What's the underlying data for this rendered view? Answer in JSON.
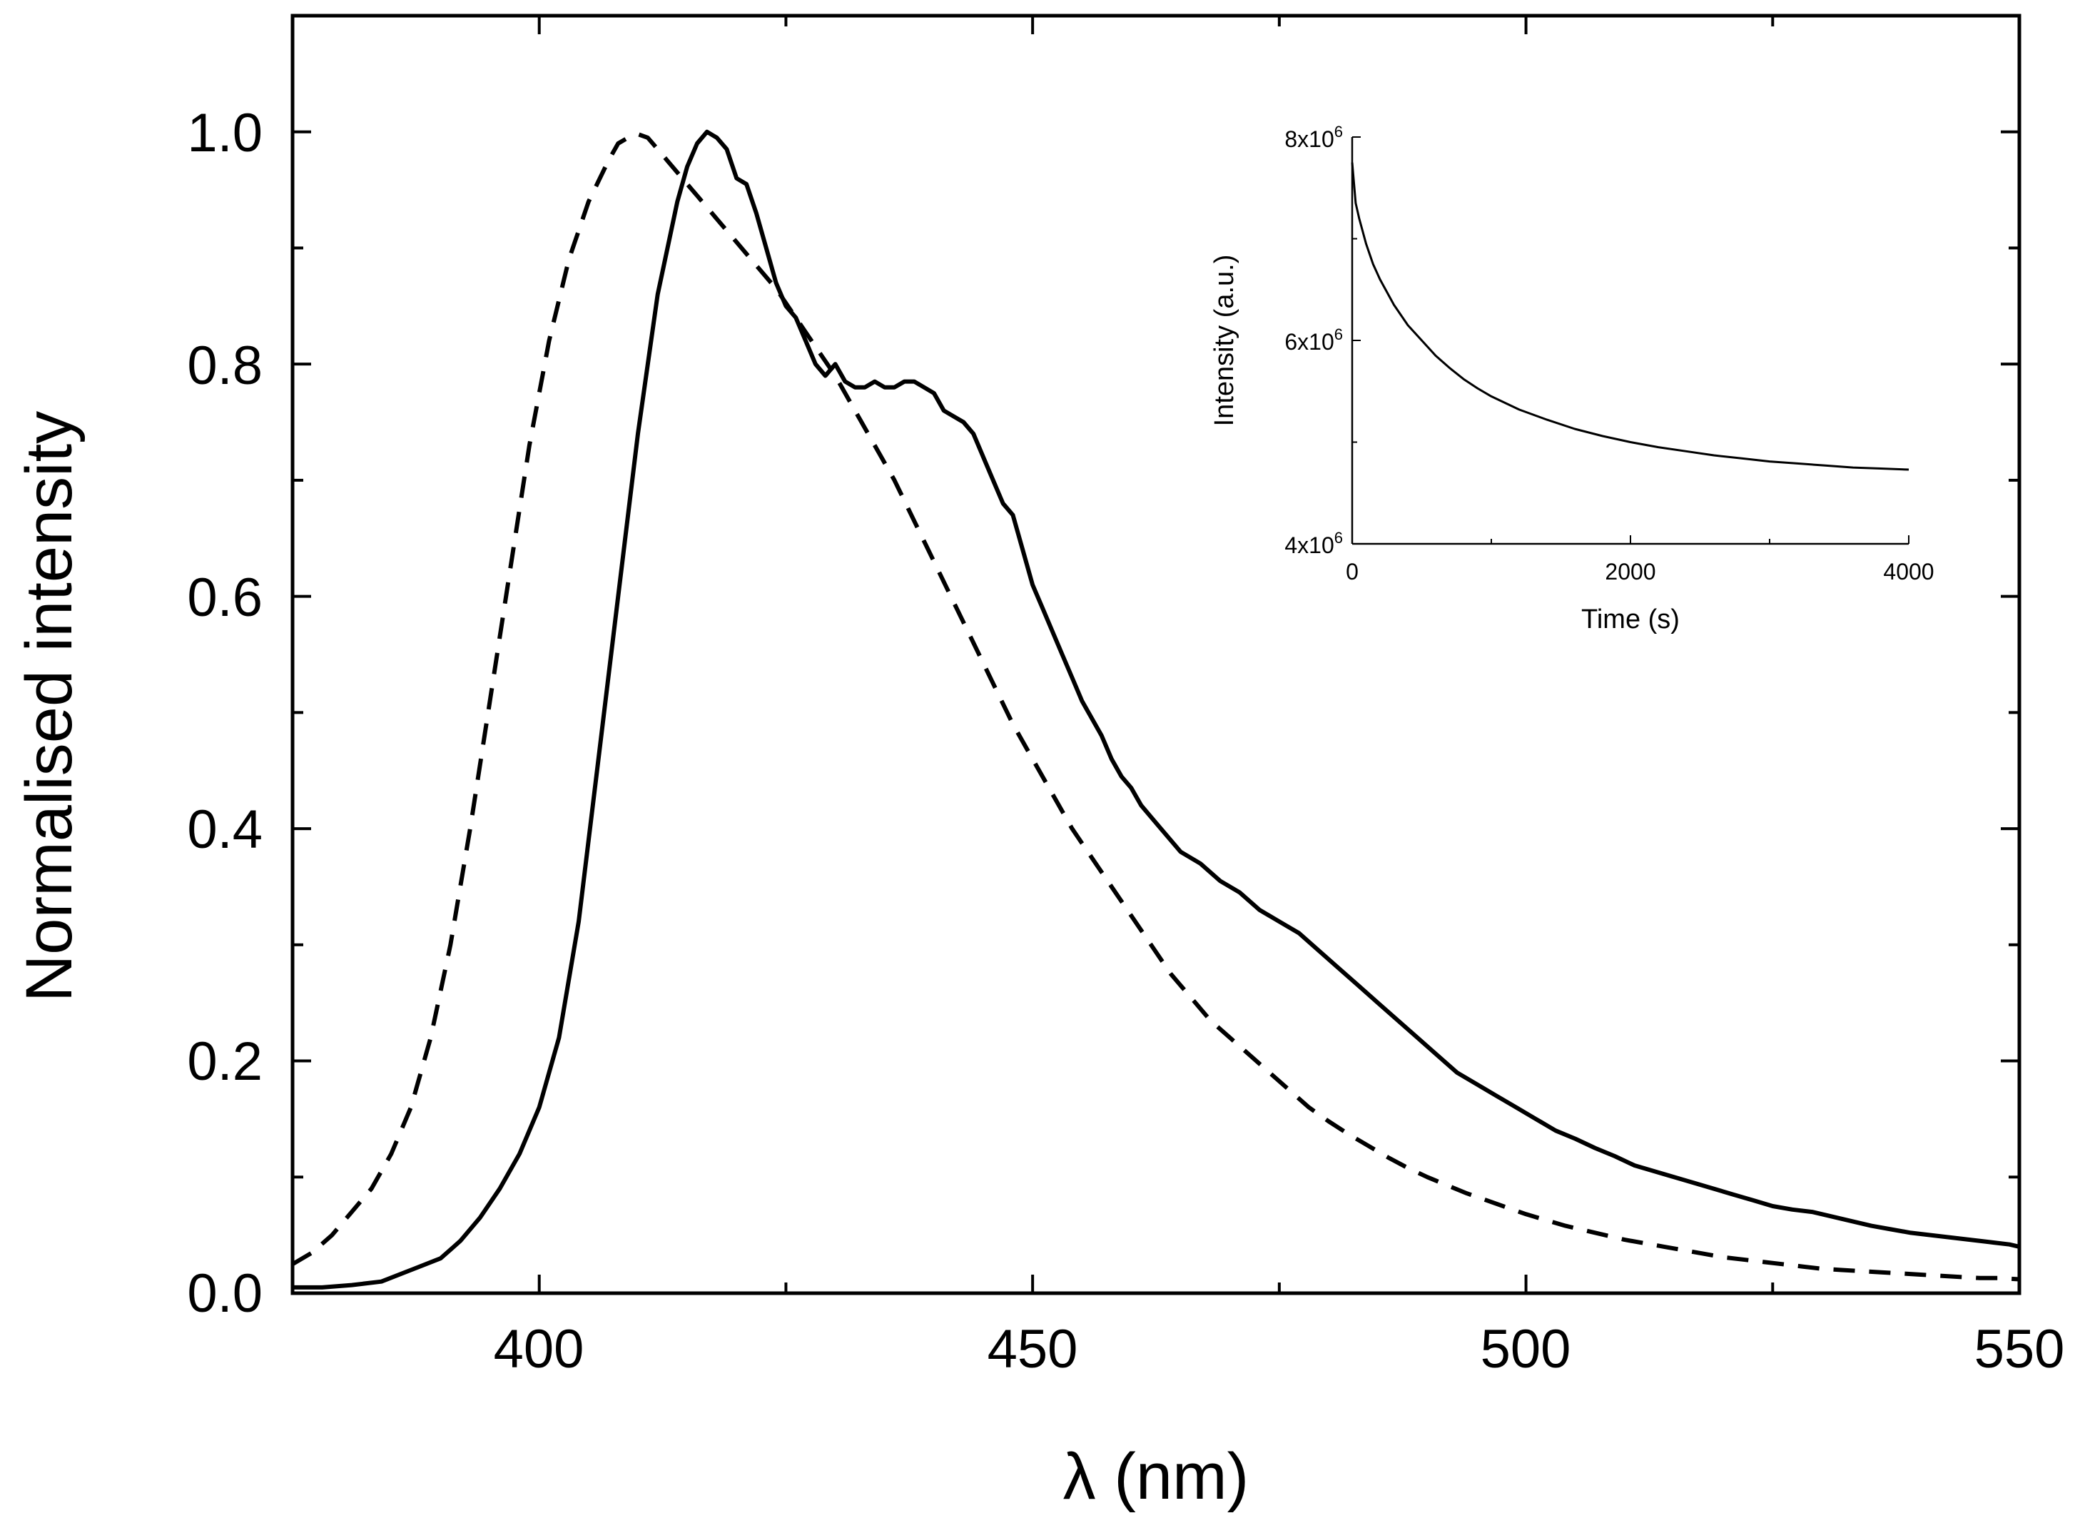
{
  "chart_data": [
    {
      "type": "line",
      "xlabel": "λ (nm)",
      "ylabel": "Normalised intensity",
      "xlim": [
        375,
        550
      ],
      "ylim": [
        0,
        1.1
      ],
      "xticks": [
        400,
        450,
        500,
        550
      ],
      "xtick_labels": [
        "400",
        "450",
        "500",
        "550"
      ],
      "yticks": [
        0.0,
        0.2,
        0.4,
        0.6,
        0.8,
        1.0
      ],
      "ytick_labels": [
        "0.0",
        "0.2",
        "0.4",
        "0.6",
        "0.8",
        "1.0"
      ],
      "series": [
        {
          "name": "solid",
          "style": "solid",
          "x": [
            375,
            378,
            381,
            384,
            387,
            390,
            392,
            394,
            396,
            398,
            400,
            402,
            404,
            406,
            408,
            410,
            412,
            414,
            415,
            416,
            417,
            418,
            419,
            420,
            421,
            422,
            423,
            424,
            425,
            426,
            427,
            428,
            429,
            430,
            431,
            432,
            433,
            434,
            435,
            436,
            437,
            438,
            439,
            440,
            441,
            442,
            443,
            444,
            445,
            446,
            447,
            448,
            449,
            450,
            451,
            452,
            453,
            454,
            455,
            456,
            457,
            458,
            459,
            460,
            461,
            462,
            463,
            465,
            467,
            469,
            471,
            473,
            475,
            477,
            479,
            481,
            483,
            485,
            487,
            489,
            491,
            493,
            495,
            497,
            499,
            501,
            503,
            505,
            507,
            509,
            511,
            513,
            515,
            517,
            519,
            521,
            523,
            525,
            527,
            529,
            531,
            533,
            535,
            537,
            539,
            541,
            543,
            545,
            547,
            549,
            550
          ],
          "y": [
            0.005,
            0.005,
            0.007,
            0.01,
            0.02,
            0.03,
            0.045,
            0.065,
            0.09,
            0.12,
            0.16,
            0.22,
            0.32,
            0.46,
            0.6,
            0.74,
            0.86,
            0.94,
            0.97,
            0.99,
            1.0,
            0.995,
            0.985,
            0.96,
            0.955,
            0.93,
            0.9,
            0.87,
            0.85,
            0.84,
            0.82,
            0.8,
            0.79,
            0.8,
            0.785,
            0.78,
            0.78,
            0.785,
            0.78,
            0.78,
            0.785,
            0.785,
            0.78,
            0.775,
            0.76,
            0.755,
            0.75,
            0.74,
            0.72,
            0.7,
            0.68,
            0.67,
            0.64,
            0.61,
            0.59,
            0.57,
            0.55,
            0.53,
            0.51,
            0.495,
            0.48,
            0.46,
            0.445,
            0.435,
            0.42,
            0.41,
            0.4,
            0.38,
            0.37,
            0.355,
            0.345,
            0.33,
            0.32,
            0.31,
            0.295,
            0.28,
            0.265,
            0.25,
            0.235,
            0.22,
            0.205,
            0.19,
            0.18,
            0.17,
            0.16,
            0.15,
            0.14,
            0.133,
            0.125,
            0.118,
            0.11,
            0.105,
            0.1,
            0.095,
            0.09,
            0.085,
            0.08,
            0.075,
            0.072,
            0.07,
            0.066,
            0.062,
            0.058,
            0.055,
            0.052,
            0.05,
            0.048,
            0.046,
            0.044,
            0.042,
            0.04
          ]
        },
        {
          "name": "dashed",
          "style": "dashed",
          "x": [
            375,
            377,
            379,
            381,
            383,
            385,
            387,
            389,
            391,
            393,
            395,
            397,
            399,
            401,
            403,
            405,
            407,
            408,
            409,
            410,
            411,
            412,
            413,
            414,
            415,
            416,
            417,
            418,
            420,
            422,
            424,
            426,
            428,
            430,
            432,
            434,
            436,
            438,
            440,
            442,
            444,
            446,
            448,
            450,
            452,
            454,
            456,
            458,
            460,
            462,
            464,
            466,
            468,
            470,
            472,
            474,
            476,
            478,
            480,
            482,
            484,
            486,
            488,
            490,
            492,
            494,
            496,
            498,
            500,
            502,
            504,
            506,
            508,
            510,
            512,
            514,
            516,
            518,
            520,
            522,
            524,
            526,
            528,
            530,
            532,
            534,
            536,
            538,
            540,
            542,
            544,
            546,
            548,
            550
          ],
          "y": [
            0.025,
            0.035,
            0.05,
            0.07,
            0.09,
            0.12,
            0.16,
            0.22,
            0.3,
            0.4,
            0.51,
            0.62,
            0.73,
            0.82,
            0.89,
            0.94,
            0.975,
            0.99,
            0.995,
            0.998,
            0.995,
            0.985,
            0.975,
            0.965,
            0.955,
            0.945,
            0.935,
            0.925,
            0.905,
            0.885,
            0.865,
            0.84,
            0.815,
            0.79,
            0.76,
            0.73,
            0.7,
            0.665,
            0.63,
            0.595,
            0.56,
            0.525,
            0.49,
            0.46,
            0.43,
            0.4,
            0.375,
            0.35,
            0.325,
            0.3,
            0.275,
            0.255,
            0.235,
            0.22,
            0.205,
            0.19,
            0.175,
            0.16,
            0.148,
            0.137,
            0.127,
            0.117,
            0.108,
            0.1,
            0.093,
            0.086,
            0.08,
            0.074,
            0.068,
            0.063,
            0.058,
            0.054,
            0.05,
            0.046,
            0.043,
            0.04,
            0.037,
            0.034,
            0.031,
            0.029,
            0.027,
            0.025,
            0.023,
            0.021,
            0.02,
            0.019,
            0.018,
            0.017,
            0.016,
            0.015,
            0.014,
            0.013,
            0.013,
            0.012
          ]
        }
      ]
    },
    {
      "type": "line",
      "xlabel": "Time (s)",
      "ylabel": "Intensity (a.u.)",
      "xlim": [
        0,
        4000
      ],
      "ylim": [
        4000000,
        8000000
      ],
      "xticks": [
        0,
        2000,
        4000
      ],
      "xtick_labels": [
        "0",
        "2000",
        "4000"
      ],
      "yticks": [
        4000000,
        6000000,
        8000000
      ],
      "ytick_labels": [
        {
          "mantissa": "4x10",
          "exponent": "6"
        },
        {
          "mantissa": "6x10",
          "exponent": "6"
        },
        {
          "mantissa": "8x10",
          "exponent": "6"
        }
      ],
      "series": [
        {
          "name": "intensity decay",
          "x": [
            0,
            25,
            50,
            100,
            150,
            200,
            300,
            400,
            500,
            600,
            700,
            800,
            900,
            1000,
            1200,
            1400,
            1600,
            1800,
            2000,
            2200,
            2400,
            2600,
            2800,
            3000,
            3200,
            3400,
            3600,
            3800,
            4000
          ],
          "y": [
            7750000,
            7350000,
            7200000,
            6950000,
            6750000,
            6600000,
            6350000,
            6150000,
            6000000,
            5850000,
            5730000,
            5620000,
            5530000,
            5450000,
            5320000,
            5220000,
            5130000,
            5060000,
            5000000,
            4950000,
            4910000,
            4870000,
            4840000,
            4810000,
            4790000,
            4770000,
            4750000,
            4740000,
            4730000
          ]
        }
      ]
    }
  ]
}
